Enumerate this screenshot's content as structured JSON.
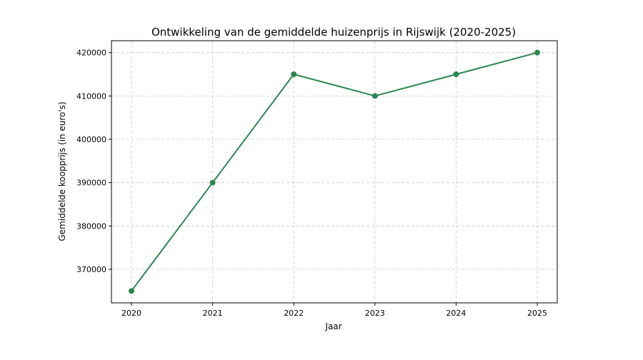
{
  "chart_data": {
    "type": "line",
    "title": "Ontwikkeling van de gemiddelde huizenprijs in Rijswijk (2020-2025)",
    "xlabel": "Jaar",
    "ylabel": "Gemiddelde koopprijs (in euro's)",
    "categories": [
      "2020",
      "2021",
      "2022",
      "2023",
      "2024",
      "2025"
    ],
    "series": [
      {
        "values": [
          365000,
          390000,
          415000,
          410000,
          415000,
          420000
        ],
        "color": "#2e8552"
      }
    ],
    "yticks": [
      370000,
      380000,
      390000,
      400000,
      410000,
      420000
    ],
    "ylim": [
      362250,
      422750
    ],
    "grid": true,
    "legend": "none",
    "marker": "circle"
  }
}
